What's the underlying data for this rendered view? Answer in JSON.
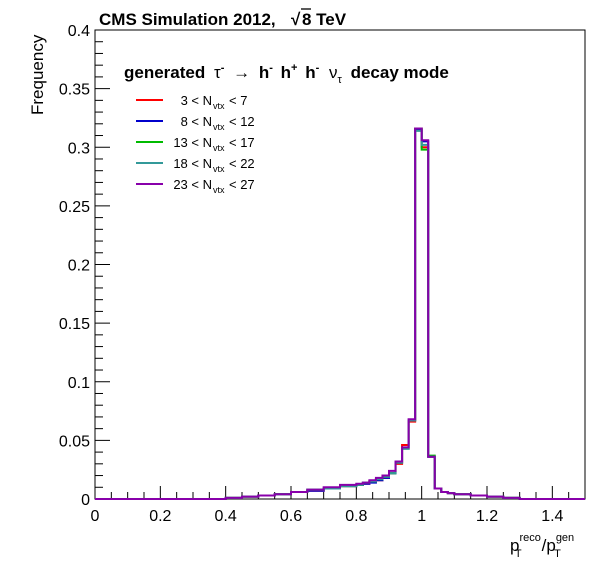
{
  "chart_data": {
    "type": "line",
    "title": "CMS Simulation 2012,",
    "title_energy": "8 TeV",
    "sqrt_symbol": "√",
    "ylabel": "Frequency",
    "xlabel": {
      "p1": "p",
      "sup1": "reco",
      "sub1": "T",
      "slash": "/",
      "p2": "p",
      "sup2": "gen",
      "sub2": "T"
    },
    "annotation": {
      "prefix": "generated",
      "tau": "τ",
      "minus": "-",
      "plus": "+",
      "arrow": "→",
      "h": "h",
      "nu": "ν",
      "suffix": "decay mode"
    },
    "xlim": [
      0,
      1.5
    ],
    "ylim": [
      0,
      0.4
    ],
    "x_ticks": [
      "0",
      "0.2",
      "0.4",
      "0.6",
      "0.8",
      "1",
      "1.2",
      "1.4"
    ],
    "x_tick_values": [
      0,
      0.2,
      0.4,
      0.6,
      0.8,
      1.0,
      1.2,
      1.4
    ],
    "y_ticks": [
      "0",
      "0.05",
      "0.1",
      "0.15",
      "0.2",
      "0.25",
      "0.3",
      "0.35",
      "0.4"
    ],
    "y_tick_values": [
      0,
      0.05,
      0.1,
      0.15,
      0.2,
      0.25,
      0.3,
      0.35,
      0.4
    ],
    "legend_position": "top-left",
    "bin_edges": [
      0.0,
      0.3,
      0.4,
      0.45,
      0.5,
      0.55,
      0.6,
      0.65,
      0.7,
      0.75,
      0.8,
      0.82,
      0.84,
      0.86,
      0.88,
      0.9,
      0.92,
      0.94,
      0.96,
      0.98,
      1.0,
      1.02,
      1.04,
      1.06,
      1.08,
      1.1,
      1.15,
      1.2,
      1.25,
      1.3,
      1.5
    ],
    "series": [
      {
        "legend": {
          "left": "3 < N",
          "sub": "vtx",
          "right": " < 7"
        },
        "color": "#ff0000",
        "values": [
          0.0,
          0.0,
          0.001,
          0.002,
          0.003,
          0.004,
          0.006,
          0.007,
          0.009,
          0.011,
          0.012,
          0.013,
          0.015,
          0.016,
          0.018,
          0.022,
          0.03,
          0.046,
          0.066,
          0.316,
          0.3,
          0.036,
          0.009,
          0.006,
          0.005,
          0.004,
          0.003,
          0.002,
          0.001,
          0.0
        ]
      },
      {
        "legend": {
          "left": "8 < N",
          "sub": "vtx",
          "right": " < 12"
        },
        "color": "#0000cc",
        "values": [
          0.0,
          0.0,
          0.001,
          0.002,
          0.003,
          0.004,
          0.006,
          0.007,
          0.009,
          0.011,
          0.012,
          0.013,
          0.014,
          0.016,
          0.018,
          0.022,
          0.031,
          0.043,
          0.067,
          0.315,
          0.305,
          0.036,
          0.009,
          0.006,
          0.005,
          0.004,
          0.003,
          0.002,
          0.001,
          0.0
        ]
      },
      {
        "legend": {
          "left": "13 < N",
          "sub": "vtx",
          "right": " < 17"
        },
        "color": "#00bb00",
        "values": [
          0.0,
          0.0,
          0.001,
          0.002,
          0.003,
          0.004,
          0.006,
          0.008,
          0.009,
          0.011,
          0.012,
          0.014,
          0.015,
          0.017,
          0.019,
          0.022,
          0.031,
          0.043,
          0.067,
          0.316,
          0.298,
          0.037,
          0.009,
          0.006,
          0.005,
          0.004,
          0.003,
          0.002,
          0.001,
          0.0
        ]
      },
      {
        "legend": {
          "left": "18 < N",
          "sub": "vtx",
          "right": " < 22"
        },
        "color": "#339999",
        "values": [
          0.0,
          0.0,
          0.001,
          0.002,
          0.003,
          0.004,
          0.006,
          0.008,
          0.009,
          0.011,
          0.012,
          0.014,
          0.015,
          0.017,
          0.019,
          0.022,
          0.031,
          0.043,
          0.067,
          0.314,
          0.302,
          0.036,
          0.009,
          0.006,
          0.005,
          0.004,
          0.003,
          0.002,
          0.001,
          0.0
        ]
      },
      {
        "legend": {
          "left": "23 < N",
          "sub": "vtx",
          "right": " < 27"
        },
        "color": "#8800aa",
        "values": [
          0.0,
          0.0,
          0.001,
          0.002,
          0.003,
          0.004,
          0.006,
          0.008,
          0.01,
          0.012,
          0.013,
          0.014,
          0.016,
          0.018,
          0.02,
          0.024,
          0.032,
          0.044,
          0.068,
          0.316,
          0.306,
          0.036,
          0.009,
          0.006,
          0.005,
          0.004,
          0.003,
          0.002,
          0.001,
          0.0
        ]
      }
    ]
  }
}
